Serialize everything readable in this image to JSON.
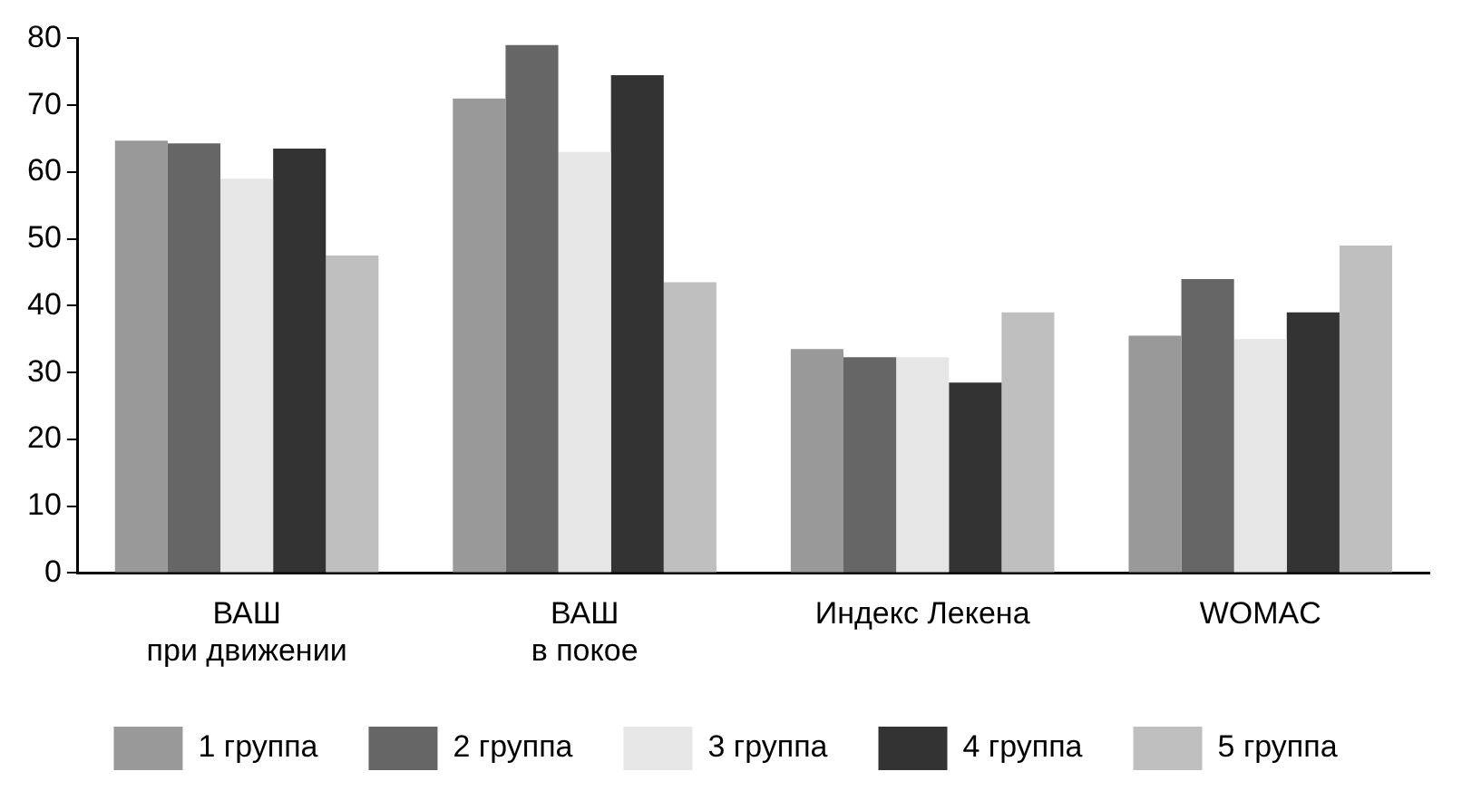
{
  "chart_data": {
    "type": "bar",
    "categories": [
      "ВАШ\nпри движении",
      "ВАШ\nв покое",
      "Индекс Лекена",
      "WOMAC"
    ],
    "series": [
      {
        "name": "1 группа",
        "color": "#999999",
        "values": [
          64.7,
          71,
          33.5,
          35.5
        ]
      },
      {
        "name": "2 группа",
        "color": "#666666",
        "values": [
          64.3,
          79,
          32.3,
          44
        ]
      },
      {
        "name": "3 группа",
        "color": "#e6e6e6",
        "values": [
          59,
          63,
          32.3,
          35
        ]
      },
      {
        "name": "4 группа",
        "color": "#333333",
        "values": [
          63.5,
          74.5,
          28.5,
          39
        ]
      },
      {
        "name": "5 группа",
        "color": "#bfbfbf",
        "values": [
          47.5,
          43.5,
          39,
          49
        ]
      }
    ],
    "ylim": [
      0,
      80
    ],
    "yticks": [
      0,
      10,
      20,
      30,
      40,
      50,
      60,
      70,
      80
    ],
    "grid": false,
    "legend": "bottom"
  }
}
